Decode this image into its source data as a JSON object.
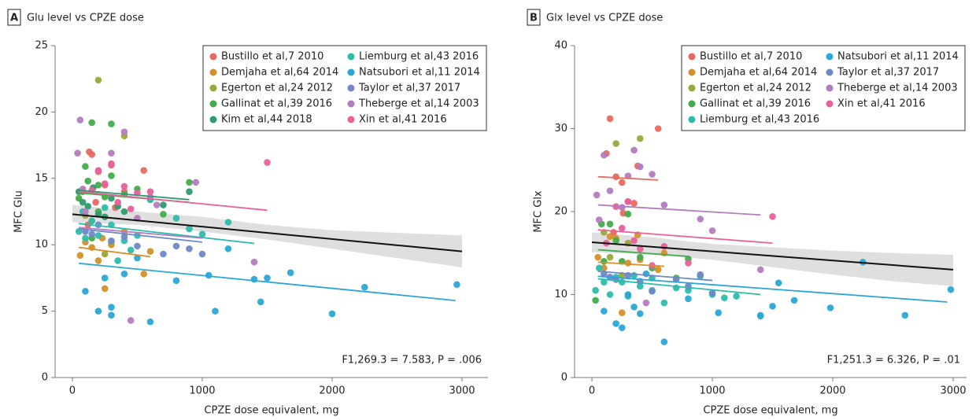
{
  "chart_data": [
    {
      "type": "scatter",
      "panel": "A",
      "title": "Glu level vs CPZE dose",
      "x_label": "CPZE dose equivalent, mg",
      "y_label": "MFC Glu",
      "annotation": "F1,269.3 = 7.583, P = .006",
      "xlim": [
        -133,
        3200
      ],
      "ylim": [
        0,
        25
      ],
      "xticks": [
        0,
        1000,
        2000,
        3000
      ],
      "yticks": [
        0,
        5,
        10,
        15,
        20,
        25
      ],
      "overall": {
        "color": "#111111",
        "x": [
          0,
          3000
        ],
        "y": [
          12.3,
          9.5
        ]
      },
      "ci": {
        "color": "#d9d9d9",
        "x": [
          0,
          500,
          1000,
          1500,
          2000,
          2500,
          3000
        ],
        "lower": [
          11.7,
          11.5,
          11.0,
          10.4,
          9.7,
          9.0,
          8.3
        ],
        "upper": [
          13.0,
          12.5,
          12.1,
          11.5,
          11.1,
          10.9,
          10.7
        ]
      },
      "series": [
        {
          "name": "Bustillo et al,7 2010",
          "color": "#e8695f",
          "x": [
            130,
            150,
            200,
            250,
            300,
            550,
            180,
            120,
            400,
            330
          ],
          "y": [
            17,
            16.8,
            15.5,
            14.5,
            16,
            15.6,
            13.2,
            11.5,
            14,
            12.8
          ]
        },
        {
          "name": "Demjaha et al,64 2014",
          "color": "#d4902a",
          "x": [
            60,
            100,
            150,
            200,
            250,
            300,
            400,
            550,
            600,
            230
          ],
          "y": [
            9.2,
            10.2,
            9.8,
            8.8,
            6.7,
            10.0,
            11.0,
            7.8,
            9.5,
            10.5
          ],
          "fit": {
            "x": [
              50,
              600
            ],
            "y": [
              9.8,
              9.1
            ]
          }
        },
        {
          "name": "Egerton et al,24 2012",
          "color": "#9aa83a",
          "x": [
            200,
            400,
            150,
            300,
            100,
            250
          ],
          "y": [
            22.4,
            18.2,
            11.8,
            10.2,
            12.2,
            9.3
          ]
        },
        {
          "name": "Gallinat et al,39 2016",
          "color": "#42ad4a",
          "x": [
            50,
            100,
            120,
            150,
            200,
            250,
            300,
            300,
            400,
            500,
            700,
            900,
            150,
            200,
            80
          ],
          "y": [
            13.5,
            15.9,
            14.8,
            19.2,
            14.5,
            13.6,
            19.1,
            15.2,
            13.8,
            14.2,
            12.3,
            14.7,
            10.5,
            12.5,
            14.0
          ],
          "fit": {
            "x": [
              50,
              900
            ],
            "y": [
              13.9,
              13.2
            ]
          }
        },
        {
          "name": "Kim et al,44 2018",
          "color": "#2e9a6e",
          "x": [
            50,
            80,
            120,
            160,
            200,
            250,
            300,
            350,
            400,
            600,
            700,
            900
          ],
          "y": [
            14.0,
            13.2,
            12.9,
            14.3,
            12.3,
            12.1,
            13.5,
            12.9,
            12.5,
            13.4,
            13.0,
            14.0
          ],
          "fit": {
            "x": [
              50,
              900
            ],
            "y": [
              14.1,
              13.4
            ]
          }
        },
        {
          "name": "Liemburg et al,43 2016",
          "color": "#2cbcac",
          "x": [
            50,
            80,
            100,
            150,
            200,
            250,
            300,
            400,
            500,
            600,
            800,
            900,
            1000,
            1200,
            350,
            450
          ],
          "y": [
            11.0,
            12.5,
            10.5,
            11.8,
            10.7,
            12.8,
            11.5,
            10.3,
            10.7,
            13.4,
            12.0,
            11.2,
            10.8,
            11.7,
            8.8,
            9.6
          ],
          "fit": {
            "x": [
              50,
              1400
            ],
            "y": [
              11.6,
              10.1
            ]
          }
        },
        {
          "name": "Natsubori et al,11 2014",
          "color": "#2aa6d8",
          "x": [
            100,
            200,
            250,
            300,
            300,
            400,
            500,
            600,
            800,
            1050,
            1200,
            1400,
            1500,
            1680,
            2000,
            2250,
            2960,
            1100,
            1450
          ],
          "y": [
            6.5,
            5.0,
            7.5,
            5.3,
            4.7,
            7.8,
            9.0,
            4.2,
            7.3,
            7.7,
            9.7,
            7.4,
            7.5,
            7.9,
            4.8,
            6.8,
            7.0,
            5.0,
            5.7
          ],
          "fit": {
            "x": [
              50,
              2950
            ],
            "y": [
              8.6,
              5.8
            ]
          }
        },
        {
          "name": "Taylor et al,37 2017",
          "color": "#6f88c8",
          "x": [
            100,
            150,
            200,
            300,
            400,
            500,
            700,
            800,
            900,
            1000
          ],
          "y": [
            11.0,
            10.8,
            11.5,
            10.3,
            10.6,
            9.9,
            9.3,
            9.9,
            9.7,
            9.3
          ],
          "fit": {
            "x": [
              50,
              1000
            ],
            "y": [
              11.2,
              10.2
            ]
          }
        },
        {
          "name": "Theberge et al,14 2003",
          "color": "#b47cc0",
          "x": [
            40,
            60,
            80,
            100,
            300,
            400,
            450,
            600,
            650,
            950,
            1400,
            500
          ],
          "y": [
            16.9,
            19.4,
            14.2,
            12.5,
            16.9,
            18.5,
            4.3,
            13.6,
            13.0,
            14.7,
            8.7,
            12.0
          ],
          "fit": {
            "x": [
              50,
              1000
            ],
            "y": [
              11.3,
              10.5
            ]
          }
        },
        {
          "name": "Xin et al,41 2016",
          "color": "#e8609c",
          "x": [
            150,
            200,
            250,
            300,
            350,
            400,
            500,
            1500,
            600,
            450
          ],
          "y": [
            14.1,
            15.6,
            14.6,
            16.1,
            13.2,
            14.4,
            13.9,
            16.2,
            14.0,
            12.7
          ],
          "fit": {
            "x": [
              50,
              1500
            ],
            "y": [
              14.0,
              12.6
            ]
          }
        }
      ]
    },
    {
      "type": "scatter",
      "panel": "B",
      "title": "Glx level vs CPZE dose",
      "x_label": "CPZE dose equivalent, mg",
      "y_label": "MFC Glx",
      "annotation": "F1,251.3 = 6.326, P = .01",
      "xlim": [
        -144,
        3111
      ],
      "ylim": [
        0,
        40
      ],
      "xticks": [
        0,
        1000,
        2000,
        3000
      ],
      "yticks": [
        0,
        10,
        20,
        30,
        40
      ],
      "overall": {
        "color": "#111111",
        "x": [
          0,
          3000
        ],
        "y": [
          16.3,
          13.0
        ]
      },
      "ci": {
        "color": "#d9d9d9",
        "x": [
          0,
          500,
          1000,
          1500,
          2000,
          2500,
          3000
        ],
        "lower": [
          15.1,
          14.8,
          14.2,
          13.3,
          12.4,
          11.6,
          11.0
        ],
        "upper": [
          17.5,
          16.9,
          16.1,
          15.7,
          15.3,
          15.0,
          14.8
        ]
      },
      "series": [
        {
          "name": "Bustillo et al,7 2010",
          "color": "#e8695f",
          "x": [
            120,
            150,
            200,
            250,
            300,
            350,
            550,
            180,
            260,
            380
          ],
          "y": [
            27,
            31.2,
            24.2,
            23.5,
            21.2,
            21.0,
            30.0,
            17.5,
            19.8,
            25.5
          ],
          "fit": {
            "x": [
              50,
              550
            ],
            "y": [
              24.2,
              23.8
            ]
          }
        },
        {
          "name": "Demjaha et al,64 2014",
          "color": "#d4902a",
          "x": [
            50,
            100,
            150,
            200,
            250,
            300,
            400,
            550,
            600,
            380
          ],
          "y": [
            14.5,
            13.2,
            17.0,
            16.8,
            7.8,
            13.8,
            14.2,
            13.0,
            15.0,
            17.2
          ],
          "fit": {
            "x": [
              50,
              600
            ],
            "y": [
              13.9,
              13.4
            ]
          }
        },
        {
          "name": "Egerton et al,24 2012",
          "color": "#9aa83a",
          "x": [
            200,
            400,
            100,
            150,
            300,
            250
          ],
          "y": [
            28.2,
            28.8,
            17.5,
            14.5,
            16.2,
            12.3
          ]
        },
        {
          "name": "Gallinat et al,39 2016",
          "color": "#42ad4a",
          "x": [
            30,
            80,
            100,
            150,
            200,
            250,
            300,
            400,
            500,
            700,
            800
          ],
          "y": [
            9.3,
            18.5,
            14.0,
            18.5,
            16.5,
            14.0,
            19.7,
            14.5,
            13.2,
            12.0,
            14.3
          ],
          "fit": {
            "x": [
              50,
              800
            ],
            "y": [
              15.4,
              14.6
            ]
          }
        },
        {
          "name": "Liemburg et al,43 2016",
          "color": "#2cbcac",
          "x": [
            30,
            60,
            100,
            150,
            200,
            250,
            300,
            350,
            400,
            500,
            600,
            800,
            900,
            1000,
            1100,
            1200,
            1400,
            500,
            700
          ],
          "y": [
            10.5,
            13.2,
            11.5,
            10.0,
            12.1,
            11.5,
            9.8,
            12.3,
            11.0,
            10.5,
            9.0,
            10.5,
            12.2,
            10.0,
            9.6,
            9.8,
            7.4,
            12.0,
            10.8
          ],
          "fit": {
            "x": [
              50,
              1400
            ],
            "y": [
              11.9,
              10.0
            ]
          }
        },
        {
          "name": "Natsubori et al,11 2014",
          "color": "#2aa6d8",
          "x": [
            100,
            200,
            250,
            300,
            350,
            400,
            450,
            600,
            800,
            1050,
            1400,
            1500,
            1550,
            1680,
            1980,
            2250,
            2600,
            2980
          ],
          "y": [
            8.0,
            6.5,
            6.0,
            10.0,
            8.5,
            7.7,
            12.5,
            4.3,
            9.5,
            7.8,
            7.5,
            8.6,
            11.4,
            9.3,
            8.4,
            13.9,
            7.5,
            10.6
          ],
          "fit": {
            "x": [
              50,
              2950
            ],
            "y": [
              12.2,
              9.1
            ]
          }
        },
        {
          "name": "Taylor et al,37 2017",
          "color": "#6f88c8",
          "x": [
            100,
            150,
            200,
            300,
            400,
            500,
            700,
            800,
            900,
            1000
          ],
          "y": [
            12.5,
            12.1,
            11.8,
            12.3,
            11.6,
            10.4,
            11.8,
            11.0,
            12.4,
            10.2
          ],
          "fit": {
            "x": [
              50,
              1000
            ],
            "y": [
              12.8,
              11.7
            ]
          }
        },
        {
          "name": "Theberge et al,14 2003",
          "color": "#b47cc0",
          "x": [
            40,
            60,
            100,
            150,
            300,
            350,
            400,
            500,
            600,
            900,
            1000,
            1400,
            450,
            250
          ],
          "y": [
            22.0,
            19.0,
            26.8,
            22.5,
            24.3,
            27.4,
            25.4,
            24.5,
            20.8,
            19.1,
            17.7,
            13.0,
            9.0,
            20.5
          ],
          "fit": {
            "x": [
              50,
              1400
            ],
            "y": [
              20.8,
              19.6
            ]
          }
        },
        {
          "name": "Xin et al,41 2016",
          "color": "#e8609c",
          "x": [
            120,
            200,
            250,
            300,
            350,
            400,
            500,
            1500,
            600,
            800
          ],
          "y": [
            16.2,
            20.6,
            18.0,
            21.2,
            16.5,
            15.5,
            13.5,
            19.4,
            15.8,
            13.8
          ],
          "fit": {
            "x": [
              50,
              1500
            ],
            "y": [
              17.8,
              16.2
            ]
          }
        }
      ]
    }
  ]
}
